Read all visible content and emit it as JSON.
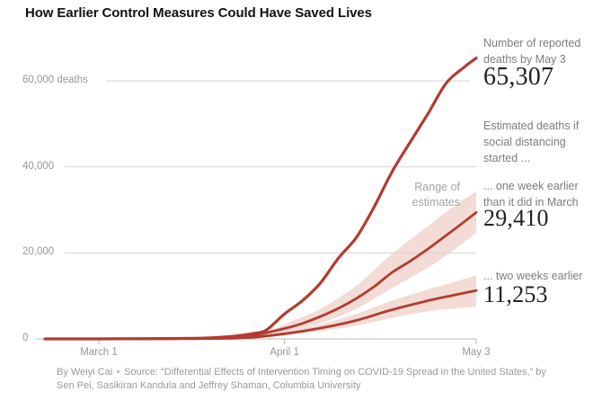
{
  "page": {
    "title": "How Earlier Control Measures Could Have Saved Lives"
  },
  "annotations": {
    "reported_label": "Number of reported deaths by May 3",
    "reported_value": "65,307",
    "estimated_intro": "Estimated deaths if social distancing started ...",
    "one_week_label": "... one week earlier than it did in March",
    "one_week_value": "29,410",
    "two_week_label": "... two weeks earlier",
    "two_week_value": "11,253",
    "range_label": "Range of estimates"
  },
  "footer": {
    "byline": "By Weiyi Cai",
    "source": "Source: “Differential Effects of Intervention Timing on COVID-19 Spread in the United States,” by Sen Pei, Sasikiran Kandula and Jeffrey Shaman, Columbia University"
  },
  "colors": {
    "line_red": "#b13c31",
    "band_pink": "#f2dcd5",
    "grid_gray": "#d4d4d4",
    "axis_gray": "#b7b7b7",
    "note_gray": "#7c7c7c",
    "value_ink": "#222222"
  },
  "chart_data": {
    "type": "line",
    "title": "How Earlier Control Measures Could Have Saved Lives",
    "legend_position": "right-annotations",
    "grid": true,
    "x_axis": {
      "unit": "day index from Feb 21, 2020",
      "range_days": [
        0,
        72
      ],
      "ticks": [
        {
          "day": 9,
          "label": "March 1"
        },
        {
          "day": 40,
          "label": "April 1"
        },
        {
          "day": 72,
          "label": "May 3"
        }
      ]
    },
    "y_axis": {
      "label": "deaths",
      "range": [
        0,
        66000
      ],
      "ticks": [
        {
          "value": 0,
          "label": "0"
        },
        {
          "value": 20000,
          "label": "20,000"
        },
        {
          "value": 40000,
          "label": "40,000"
        },
        {
          "value": 60000,
          "label": "60,000 deaths"
        }
      ]
    },
    "series": [
      {
        "name": "Reported deaths",
        "annotation": "Number of reported deaths by May 3",
        "final_value": 65307,
        "points": [
          [
            0,
            0
          ],
          [
            9,
            10
          ],
          [
            18,
            60
          ],
          [
            25,
            150
          ],
          [
            29,
            350
          ],
          [
            32,
            700
          ],
          [
            35,
            1300
          ],
          [
            37,
            2100
          ],
          [
            40,
            5800
          ],
          [
            43,
            8900
          ],
          [
            46,
            13000
          ],
          [
            49,
            18800
          ],
          [
            52,
            23600
          ],
          [
            55,
            30800
          ],
          [
            58,
            39000
          ],
          [
            61,
            45800
          ],
          [
            64,
            52500
          ],
          [
            67,
            59500
          ],
          [
            70,
            63200
          ],
          [
            72,
            65307
          ]
        ]
      },
      {
        "name": "Social distancing one week earlier",
        "annotation": "... one week earlier than it did in March",
        "final_value": 29410,
        "points": [
          [
            0,
            0
          ],
          [
            9,
            5
          ],
          [
            20,
            30
          ],
          [
            29,
            160
          ],
          [
            34,
            600
          ],
          [
            40,
            2400
          ],
          [
            43,
            3600
          ],
          [
            46,
            5200
          ],
          [
            49,
            7100
          ],
          [
            52,
            9400
          ],
          [
            55,
            12200
          ],
          [
            58,
            15500
          ],
          [
            61,
            18100
          ],
          [
            64,
            21000
          ],
          [
            68,
            25100
          ],
          [
            72,
            29410
          ]
        ],
        "band": {
          "label": "Range of estimates",
          "upper": [
            [
              36,
              900
            ],
            [
              40,
              3400
            ],
            [
              46,
              7000
            ],
            [
              52,
              12400
            ],
            [
              58,
              19800
            ],
            [
              64,
              26300
            ],
            [
              68,
              30600
            ],
            [
              72,
              34300
            ]
          ],
          "lower": [
            [
              36,
              900
            ],
            [
              40,
              1600
            ],
            [
              46,
              3700
            ],
            [
              52,
              7000
            ],
            [
              58,
              11900
            ],
            [
              64,
              16600
            ],
            [
              68,
              20400
            ],
            [
              72,
              24700
            ]
          ]
        }
      },
      {
        "name": "Social distancing two weeks earlier",
        "annotation": "... two weeks earlier",
        "final_value": 11253,
        "points": [
          [
            0,
            0
          ],
          [
            9,
            2
          ],
          [
            20,
            15
          ],
          [
            29,
            80
          ],
          [
            34,
            300
          ],
          [
            40,
            1200
          ],
          [
            46,
            2500
          ],
          [
            52,
            4300
          ],
          [
            58,
            6800
          ],
          [
            64,
            8900
          ],
          [
            68,
            10100
          ],
          [
            72,
            11253
          ]
        ],
        "band": {
          "upper": [
            [
              37,
              500
            ],
            [
              40,
              1700
            ],
            [
              46,
              3400
            ],
            [
              52,
              5800
            ],
            [
              58,
              8900
            ],
            [
              64,
              11500
            ],
            [
              68,
              13100
            ],
            [
              72,
              14800
            ]
          ],
          "lower": [
            [
              37,
              500
            ],
            [
              40,
              800
            ],
            [
              46,
              1800
            ],
            [
              52,
              3100
            ],
            [
              58,
              4900
            ],
            [
              64,
              6400
            ],
            [
              68,
              7000
            ],
            [
              72,
              7500
            ]
          ]
        }
      }
    ]
  }
}
